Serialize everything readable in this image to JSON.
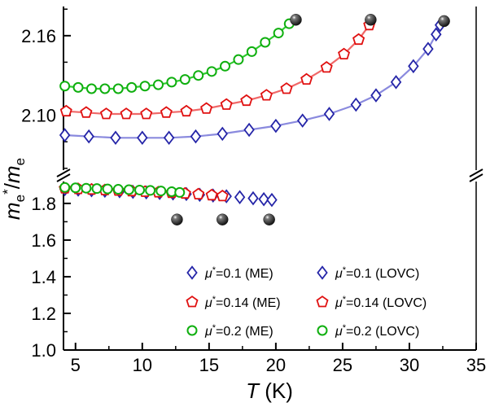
{
  "labels": {
    "ylabel": {
      "m1": "m",
      "sub1": "e",
      "sup1": "*",
      "slash": "/",
      "m2": "m",
      "sub2": "e"
    },
    "xlabel": {
      "sym": "T",
      "unit": " (K)"
    }
  },
  "colors": {
    "blue": "#2525a8",
    "red": "#e01010",
    "green": "#0faf0f",
    "blue_line": "#8a8ade",
    "red_line": "#f06868",
    "green_line": "#2ecb2e",
    "sphere": "#000000",
    "axis": "#000000"
  },
  "chart_data": {
    "type": "scatter",
    "title": "",
    "xlabel": "T (K)",
    "ylabel": "me*/me",
    "x_range": [
      4.1,
      35
    ],
    "x_ticks": [
      5,
      10,
      15,
      20,
      25,
      30,
      35
    ],
    "x_minor": [
      7.5,
      12.5,
      17.5,
      22.5,
      27.5,
      32.5
    ],
    "axis_break": {
      "lower_range": [
        1.0,
        1.915
      ],
      "upper_range": [
        2.058,
        2.182
      ],
      "lower_ticks": [
        "1.0",
        "1.2",
        "1.4",
        "1.6",
        "1.8"
      ],
      "lower_minor": [
        1.1,
        1.3,
        1.5,
        1.7,
        1.9
      ],
      "upper_ticks": [
        "2.10",
        "2.16"
      ],
      "upper_minor": [
        2.06,
        2.08,
        2.12,
        2.14,
        2.18
      ]
    },
    "grid": false,
    "legend_position": "lower-center-right",
    "series": [
      {
        "name": "μ*=0.1 (ME)",
        "symbol": "diamond",
        "color_key": "blue",
        "line": true,
        "line_color_key": "blue_line",
        "points": [
          [
            4.2,
            2.085
          ],
          [
            6,
            2.084
          ],
          [
            8,
            2.083
          ],
          [
            10,
            2.083
          ],
          [
            12,
            2.083
          ],
          [
            14,
            2.084
          ],
          [
            16,
            2.086
          ],
          [
            18,
            2.089
          ],
          [
            20,
            2.092
          ],
          [
            22,
            2.096
          ],
          [
            24,
            2.101
          ],
          [
            26,
            2.108
          ],
          [
            27.5,
            2.115
          ],
          [
            29,
            2.125
          ],
          [
            30.3,
            2.137
          ],
          [
            31.4,
            2.15
          ],
          [
            32.0,
            2.161
          ],
          [
            32.3,
            2.168
          ]
        ]
      },
      {
        "name": "μ*=0.14 (ME)",
        "symbol": "pentagon",
        "color_key": "red",
        "line": true,
        "line_color_key": "red_line",
        "points": [
          [
            4.3,
            2.103
          ],
          [
            5.8,
            2.102
          ],
          [
            7.3,
            2.101
          ],
          [
            8.8,
            2.101
          ],
          [
            10.3,
            2.101
          ],
          [
            11.8,
            2.102
          ],
          [
            13.3,
            2.103
          ],
          [
            14.8,
            2.105
          ],
          [
            16.3,
            2.108
          ],
          [
            17.8,
            2.111
          ],
          [
            19.3,
            2.115
          ],
          [
            20.8,
            2.12
          ],
          [
            22.3,
            2.127
          ],
          [
            23.8,
            2.136
          ],
          [
            25.1,
            2.146
          ],
          [
            26.2,
            2.157
          ],
          [
            27.0,
            2.168
          ]
        ]
      },
      {
        "name": "μ*=0.2 (ME)",
        "symbol": "circle",
        "color_key": "green",
        "line": true,
        "line_color_key": "green_line",
        "points": [
          [
            4.2,
            2.122
          ],
          [
            5.2,
            2.121
          ],
          [
            6.2,
            2.12
          ],
          [
            7.2,
            2.12
          ],
          [
            8.2,
            2.12
          ],
          [
            9.2,
            2.121
          ],
          [
            10.2,
            2.122
          ],
          [
            11.2,
            2.123
          ],
          [
            12.2,
            2.125
          ],
          [
            13.2,
            2.127
          ],
          [
            14.2,
            2.13
          ],
          [
            15.2,
            2.133
          ],
          [
            16.2,
            2.137
          ],
          [
            17.2,
            2.142
          ],
          [
            18.2,
            2.148
          ],
          [
            19.2,
            2.155
          ],
          [
            20.2,
            2.162
          ],
          [
            21.0,
            2.169
          ]
        ]
      },
      {
        "name": "μ*=0.1 (LOVC)",
        "symbol": "diamond",
        "color_key": "blue",
        "line": false,
        "points": [
          [
            4.2,
            1.878
          ],
          [
            5.2,
            1.875
          ],
          [
            6.2,
            1.872
          ],
          [
            7.2,
            1.869
          ],
          [
            8.3,
            1.866
          ],
          [
            9.3,
            1.863
          ],
          [
            10.3,
            1.86
          ],
          [
            11.3,
            1.857
          ],
          [
            12.3,
            1.854
          ],
          [
            13.3,
            1.851
          ],
          [
            14.3,
            1.847
          ],
          [
            15.3,
            1.843
          ],
          [
            16.3,
            1.839
          ],
          [
            17.3,
            1.834
          ],
          [
            18.3,
            1.828
          ],
          [
            19.1,
            1.823
          ],
          [
            19.7,
            1.819
          ]
        ]
      },
      {
        "name": "μ*=0.14 (LOVC)",
        "symbol": "pentagon",
        "color_key": "red",
        "line": false,
        "points": [
          [
            4.2,
            1.882
          ],
          [
            5.2,
            1.879
          ],
          [
            6.2,
            1.876
          ],
          [
            7.2,
            1.873
          ],
          [
            8.2,
            1.87
          ],
          [
            9.2,
            1.867
          ],
          [
            10.2,
            1.864
          ],
          [
            11.2,
            1.861
          ],
          [
            12.2,
            1.858
          ],
          [
            13.2,
            1.854
          ],
          [
            14.2,
            1.85
          ],
          [
            15.2,
            1.845
          ],
          [
            16.0,
            1.84
          ]
        ]
      },
      {
        "name": "μ*=0.2 (LOVC)",
        "symbol": "circle",
        "color_key": "green",
        "line": false,
        "points": [
          [
            4.2,
            1.887
          ],
          [
            5.0,
            1.885
          ],
          [
            5.8,
            1.883
          ],
          [
            6.6,
            1.881
          ],
          [
            7.4,
            1.879
          ],
          [
            8.2,
            1.877
          ],
          [
            9.0,
            1.875
          ],
          [
            9.8,
            1.873
          ],
          [
            10.6,
            1.871
          ],
          [
            11.4,
            1.868
          ],
          [
            12.2,
            1.864
          ],
          [
            12.8,
            1.86
          ]
        ]
      }
    ],
    "black_spheres": {
      "upper": [
        [
          21.5,
          2.172
        ],
        [
          27.1,
          2.172
        ],
        [
          32.6,
          2.171
        ]
      ],
      "lower": [
        [
          12.6,
          1.712
        ],
        [
          16.0,
          1.712
        ],
        [
          19.5,
          1.712
        ]
      ]
    },
    "legend": {
      "columns": [
        [
          {
            "mu": "μ",
            "sup": "*",
            "rest": "=0.1 (ME)",
            "symbol": "diamond",
            "color_key": "blue"
          },
          {
            "mu": "μ",
            "sup": "*",
            "rest": "=0.14 (ME)",
            "symbol": "pentagon",
            "color_key": "red"
          },
          {
            "mu": "μ",
            "sup": "*",
            "rest": "=0.2 (ME)",
            "symbol": "circle",
            "color_key": "green"
          }
        ],
        [
          {
            "mu": "μ",
            "sup": "*",
            "rest": "=0.1 (LOVC)",
            "symbol": "diamond",
            "color_key": "blue"
          },
          {
            "mu": "μ",
            "sup": "*",
            "rest": "=0.14 (LOVC)",
            "symbol": "pentagon",
            "color_key": "red"
          },
          {
            "mu": "μ",
            "sup": "*",
            "rest": "=0.2 (LOVC)",
            "symbol": "circle",
            "color_key": "green"
          }
        ]
      ]
    }
  }
}
